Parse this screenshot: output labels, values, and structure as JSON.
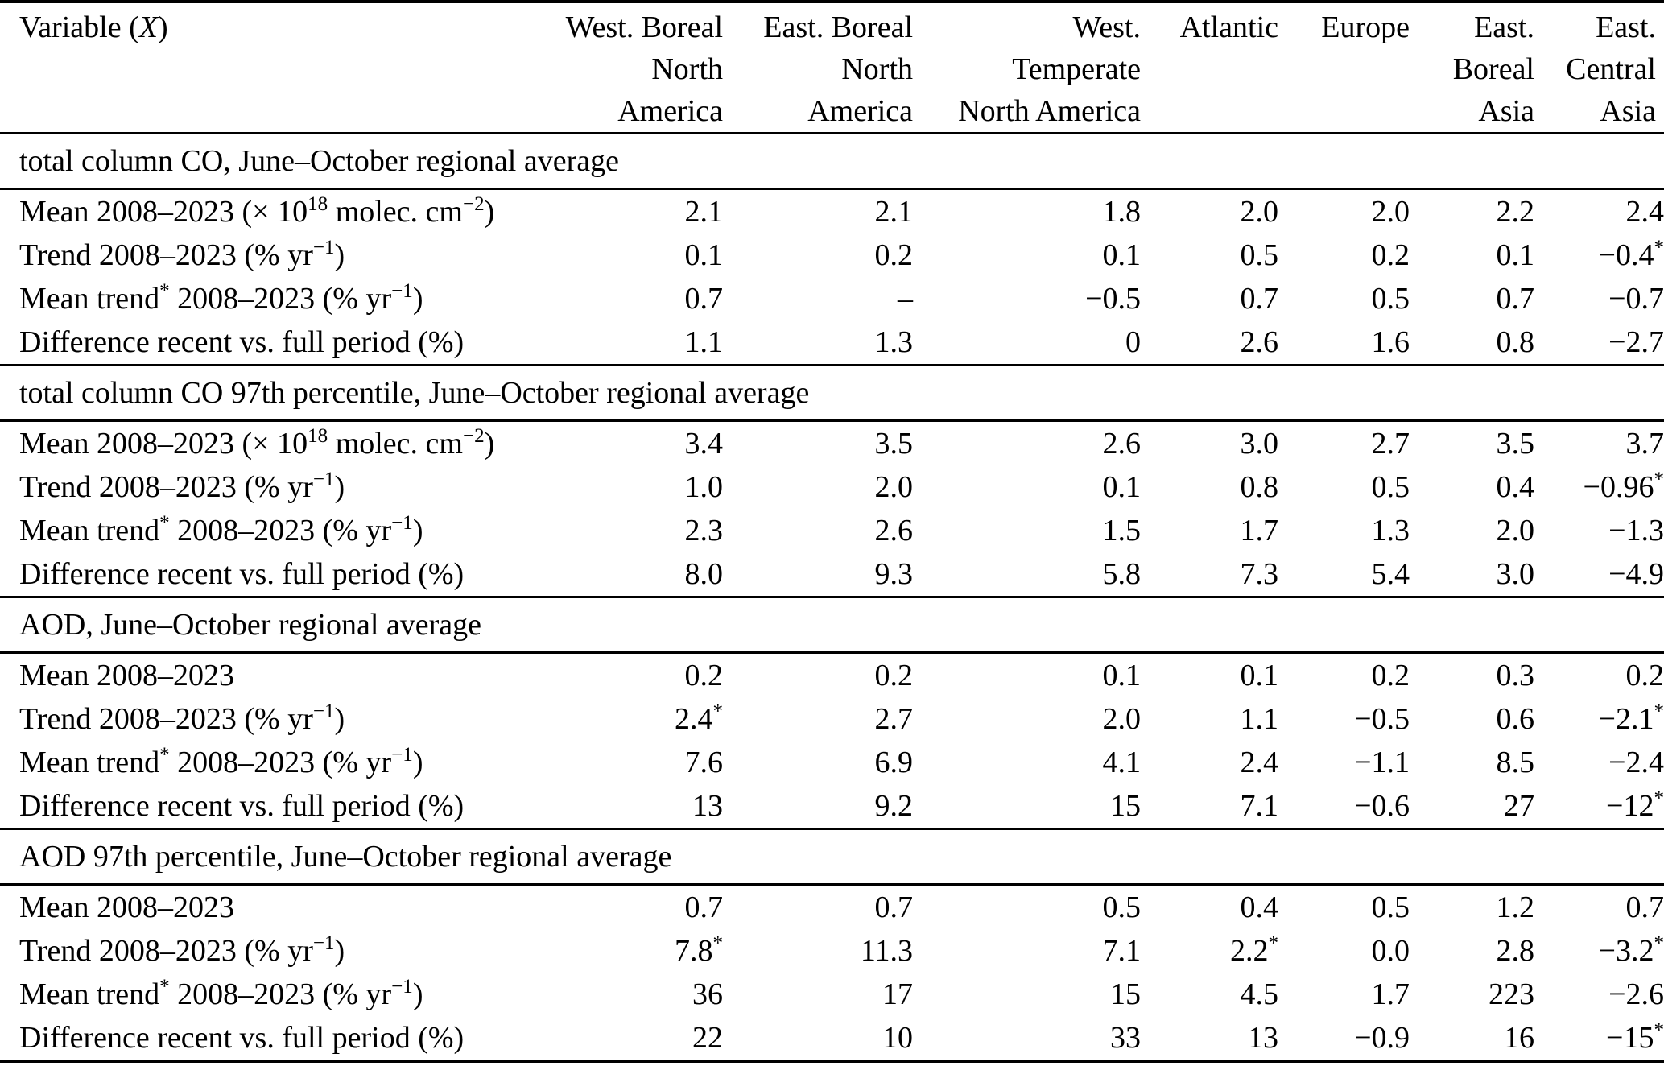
{
  "colors": {
    "background": "#ffffff",
    "text": "#000000",
    "rule": "#000000"
  },
  "table": {
    "columns": [
      {
        "id": "variable",
        "lines": [
          "Variable (_X_)"
        ]
      },
      {
        "id": "west-boreal-na",
        "lines": [
          "West. Boreal",
          "North",
          "America"
        ]
      },
      {
        "id": "east-boreal-na",
        "lines": [
          "East. Boreal",
          "North",
          "America"
        ]
      },
      {
        "id": "west-temperate-na",
        "lines": [
          "West.",
          "Temperate",
          "North America"
        ]
      },
      {
        "id": "atlantic",
        "lines": [
          "Atlantic"
        ]
      },
      {
        "id": "europe",
        "lines": [
          "Europe"
        ]
      },
      {
        "id": "east-boreal-asia",
        "lines": [
          "East.",
          "Boreal",
          "Asia"
        ]
      },
      {
        "id": "east-central-asia",
        "lines": [
          "East.",
          "Central",
          "Asia"
        ]
      }
    ],
    "sections": [
      {
        "title": "total column CO, June–October regional average",
        "rows": [
          {
            "label": "Mean 2008–2023 (× 10^{18} molec. cm^{−2})",
            "values": [
              "2.1",
              "2.1",
              "1.8",
              "2.0",
              "2.0",
              "2.2",
              "2.4"
            ]
          },
          {
            "label": "Trend 2008–2023 (% yr^{−1})",
            "values": [
              "0.1",
              "0.2",
              "0.1",
              "0.5",
              "0.2",
              "0.1",
              "−0.4^{*}"
            ]
          },
          {
            "label": "Mean trend^{*} 2008–2023 (% yr^{−1})",
            "values": [
              "0.7",
              "–",
              "−0.5",
              "0.7",
              "0.5",
              "0.7",
              "−0.7"
            ]
          },
          {
            "label": "Difference recent vs. full period (%)",
            "values": [
              "1.1",
              "1.3",
              "0",
              "2.6",
              "1.6",
              "0.8",
              "−2.7"
            ]
          }
        ]
      },
      {
        "title": "total column CO 97th percentile, June–October regional average",
        "rows": [
          {
            "label": "Mean 2008–2023 (× 10^{18} molec. cm^{−2})",
            "values": [
              "3.4",
              "3.5",
              "2.6",
              "3.0",
              "2.7",
              "3.5",
              "3.7"
            ]
          },
          {
            "label": "Trend 2008–2023 (% yr^{−1})",
            "values": [
              "1.0",
              "2.0",
              "0.1",
              "0.8",
              "0.5",
              "0.4",
              "−0.96^{*}"
            ]
          },
          {
            "label": "Mean trend^{*} 2008–2023 (% yr^{−1})",
            "values": [
              "2.3",
              "2.6",
              "1.5",
              "1.7",
              "1.3",
              "2.0",
              "−1.3"
            ]
          },
          {
            "label": "Difference recent vs. full period (%)",
            "values": [
              "8.0",
              "9.3",
              "5.8",
              "7.3",
              "5.4",
              "3.0",
              "−4.9"
            ]
          }
        ]
      },
      {
        "title": "AOD, June–October regional average",
        "rows": [
          {
            "label": "Mean 2008–2023",
            "values": [
              "0.2",
              "0.2",
              "0.1",
              "0.1",
              "0.2",
              "0.3",
              "0.2"
            ]
          },
          {
            "label": "Trend 2008–2023 (% yr^{−1})",
            "values": [
              "2.4^{*}",
              "2.7",
              "2.0",
              "1.1",
              "−0.5",
              "0.6",
              "−2.1^{*}"
            ]
          },
          {
            "label": "Mean trend^{*} 2008–2023 (% yr^{−1})",
            "values": [
              "7.6",
              "6.9",
              "4.1",
              "2.4",
              "−1.1",
              "8.5",
              "−2.4"
            ]
          },
          {
            "label": "Difference recent vs. full period (%)",
            "values": [
              "13",
              "9.2",
              "15",
              "7.1",
              "−0.6",
              "27",
              "−12^{*}"
            ]
          }
        ]
      },
      {
        "title": "AOD 97th percentile, June–October regional average",
        "rows": [
          {
            "label": "Mean 2008–2023",
            "values": [
              "0.7",
              "0.7",
              "0.5",
              "0.4",
              "0.5",
              "1.2",
              "0.7"
            ]
          },
          {
            "label": "Trend 2008–2023 (% yr^{−1})",
            "values": [
              "7.8^{*}",
              "11.3",
              "7.1",
              "2.2^{*}",
              "0.0",
              "2.8",
              "−3.2^{*}"
            ]
          },
          {
            "label": "Mean trend^{*} 2008–2023 (% yr^{−1})",
            "values": [
              "36",
              "17",
              "15",
              "4.5",
              "1.7",
              "223",
              "−2.6"
            ]
          },
          {
            "label": "Difference recent vs. full period (%)",
            "values": [
              "22",
              "10",
              "33",
              "13",
              "−0.9",
              "16",
              "−15^{*}"
            ]
          }
        ]
      }
    ]
  }
}
